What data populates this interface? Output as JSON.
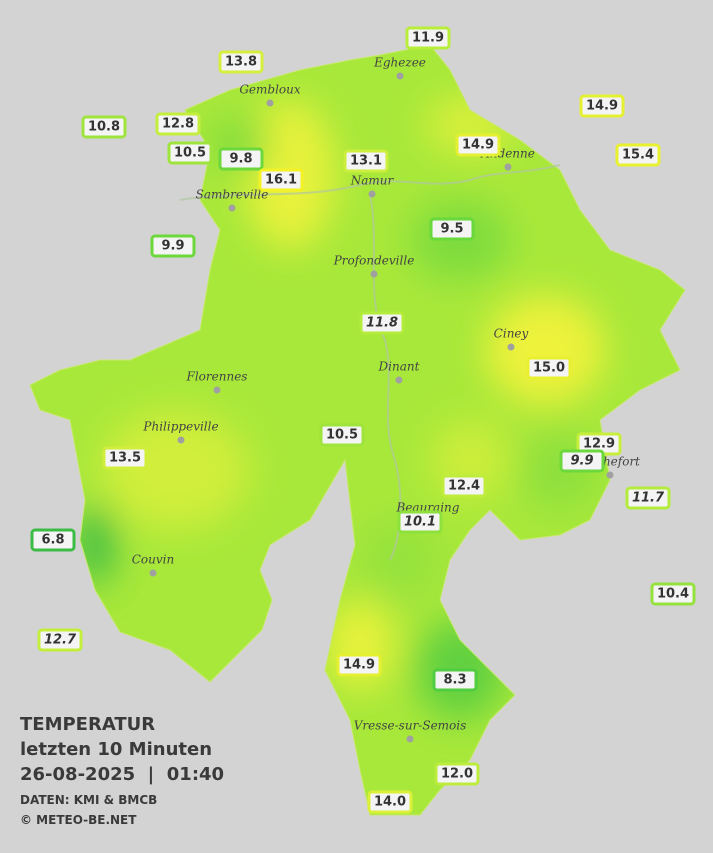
{
  "title": {
    "lines": [
      "TEMPERATUR",
      "letzten 10 Minuten",
      "26-08-2025  |  01:40"
    ],
    "source": "DATEN: KMI & BMCB",
    "copyright": "© METEO-BE.NET"
  },
  "towns": [
    "Eghezee",
    "Gembloux",
    "Andenne",
    "Namur",
    "Sambreville",
    "Profondeville",
    "Ciney",
    "Florennes",
    "Dinant",
    "Philippeville",
    "Rochefort",
    "Beauraing",
    "Couvin",
    "Vresse-sur-Semois"
  ],
  "stations": [
    {
      "label": "11.9",
      "color": "#b8ee3a"
    },
    {
      "label": "13.8",
      "color": "#d6ee3c"
    },
    {
      "label": "10.8",
      "color": "#9ee43c"
    },
    {
      "label": "12.8",
      "color": "#c4ee3c"
    },
    {
      "label": "10.5",
      "color": "#9ee43c"
    },
    {
      "label": "9.8",
      "color": "#6cd83c"
    },
    {
      "label": "16.1",
      "color": "#f2f226"
    },
    {
      "label": "13.1",
      "color": "#ccee3c"
    },
    {
      "label": "14.9",
      "color": "#e4f030"
    },
    {
      "label": "14.9",
      "color": "#e4f030"
    },
    {
      "label": "15.4",
      "color": "#e8f030"
    },
    {
      "label": "9.9",
      "color": "#6cd83c"
    },
    {
      "label": "9.5",
      "color": "#68d83c"
    },
    {
      "label": "11.8",
      "color": "#b4ec3c",
      "italic": true
    },
    {
      "label": "15.0",
      "color": "#e8f030"
    },
    {
      "label": "10.5",
      "color": "#9ee43c"
    },
    {
      "label": "13.5",
      "color": "#d2ee3c"
    },
    {
      "label": "12.9",
      "color": "#c8ee3c"
    },
    {
      "label": "9.9",
      "color": "#6cd83c",
      "italic": true
    },
    {
      "label": "12.4",
      "color": "#c0ec3c"
    },
    {
      "label": "11.7",
      "color": "#b4ec3c",
      "italic": true
    },
    {
      "label": "10.1",
      "color": "#8ee03c",
      "italic": true
    },
    {
      "label": "6.8",
      "color": "#3cbc44"
    },
    {
      "label": "10.4",
      "color": "#96e23c"
    },
    {
      "label": "12.7",
      "color": "#c4ee3c",
      "italic": true
    },
    {
      "label": "14.9",
      "color": "#e4f030"
    },
    {
      "label": "8.3",
      "color": "#52cc40"
    },
    {
      "label": "12.0",
      "color": "#bcec3c"
    },
    {
      "label": "14.0",
      "color": "#dcf03a"
    }
  ]
}
